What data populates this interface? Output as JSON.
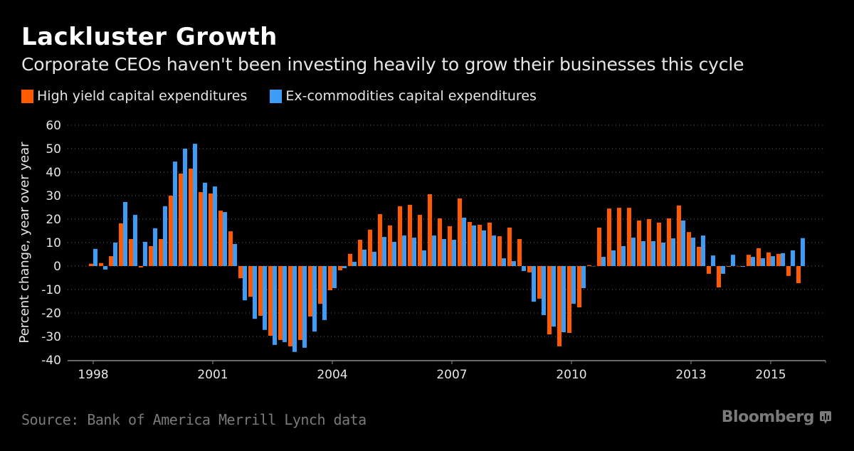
{
  "header": {
    "title": "Lackluster Growth",
    "subtitle": "Corporate CEOs haven't been investing heavily to grow their businesses this cycle"
  },
  "footer": {
    "source": "Source: Bank of America Merrill Lynch data",
    "brand": "Bloomberg",
    "brand_icon": "bloomberg-chart-bubble-icon"
  },
  "chart_data": {
    "type": "bar",
    "title": "Lackluster Growth",
    "subtitle": "Corporate CEOs haven't been investing heavily to grow their businesses this cycle",
    "xlabel": "",
    "ylabel": "Percent change, year over year",
    "ylim": [
      -40,
      60
    ],
    "yticks": [
      60,
      50,
      40,
      30,
      20,
      10,
      0,
      -10,
      -20,
      -30,
      -40
    ],
    "xticks": [
      {
        "label": "1998",
        "index": 0
      },
      {
        "label": "2001",
        "index": 12
      },
      {
        "label": "2004",
        "index": 24
      },
      {
        "label": "2007",
        "index": 36
      },
      {
        "label": "2010",
        "index": 48
      },
      {
        "label": "2013",
        "index": 60
      },
      {
        "label": "2015",
        "index": 68
      }
    ],
    "grid": true,
    "legend_position": "top-left",
    "frequency": "quarterly",
    "start": "1998 Q1",
    "end": "2015 Q4",
    "series": [
      {
        "name": "High yield capital expenditures",
        "color": "#ff5a00",
        "values": [
          1.0,
          1.3,
          4.2,
          18.2,
          11.5,
          -0.6,
          8.5,
          11.5,
          30.0,
          39.4,
          41.5,
          31.5,
          30.9,
          23.6,
          14.8,
          -5.2,
          -13.1,
          -21.2,
          -29.7,
          -31.5,
          -34.2,
          -31.5,
          -21.5,
          -16.1,
          -10.3,
          -1.8,
          5.2,
          11.2,
          15.5,
          22.1,
          17.3,
          25.5,
          26.1,
          21.8,
          30.6,
          20.3,
          17.0,
          28.8,
          18.8,
          17.6,
          18.5,
          12.7,
          16.4,
          11.5,
          -2.7,
          -13.9,
          -29.1,
          -34.2,
          -28.5,
          -17.6,
          0.4,
          16.4,
          24.5,
          24.8,
          24.8,
          19.4,
          20.0,
          18.5,
          20.3,
          25.8,
          14.5,
          8.2,
          -3.3,
          -9.1,
          -0.3,
          0.0,
          4.8,
          7.6,
          5.8,
          5.2,
          -4.2,
          -7.3
        ]
      },
      {
        "name": "Ex-commodities capital expenditures",
        "color": "#3d9cf5",
        "values": [
          7.3,
          -1.5,
          10.0,
          27.3,
          21.8,
          10.3,
          16.1,
          25.5,
          44.5,
          50.0,
          52.1,
          35.5,
          33.9,
          23.0,
          9.4,
          -14.6,
          -22.5,
          -27.2,
          -33.6,
          -32.4,
          -36.6,
          -34.8,
          -27.9,
          -23.0,
          -9.4,
          -0.9,
          1.8,
          7.0,
          6.1,
          12.4,
          10.3,
          13.0,
          12.1,
          6.7,
          13.0,
          11.5,
          11.2,
          20.6,
          17.3,
          15.2,
          13.0,
          3.3,
          2.1,
          -2.1,
          -15.2,
          -20.9,
          -25.8,
          -28.2,
          -16.1,
          -9.4,
          0.0,
          3.9,
          6.7,
          8.5,
          12.1,
          10.6,
          10.6,
          10.0,
          11.8,
          19.4,
          12.1,
          13.0,
          4.5,
          -3.3,
          4.8,
          -0.3,
          3.9,
          3.3,
          4.2,
          5.5,
          6.7,
          11.9
        ]
      }
    ]
  }
}
